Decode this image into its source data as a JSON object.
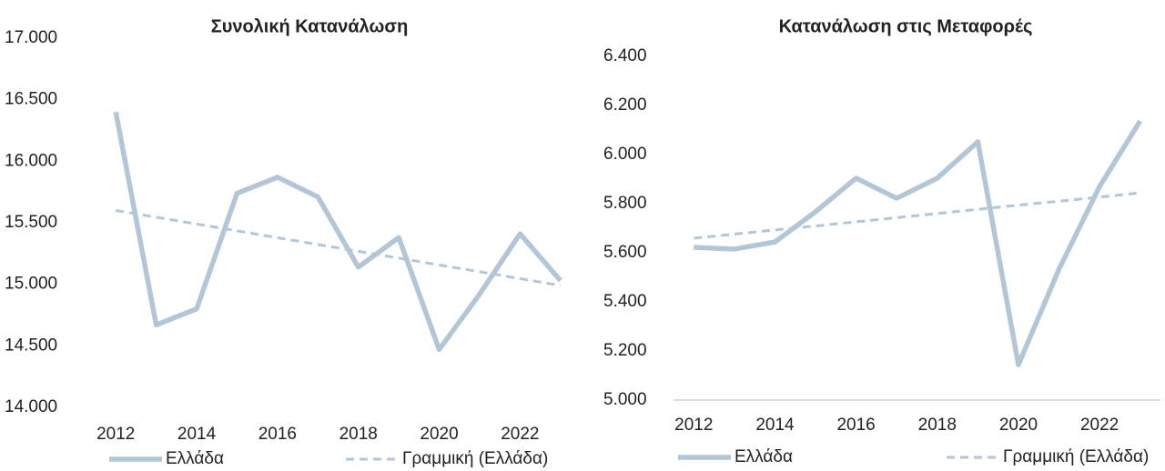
{
  "chart_data": [
    {
      "type": "line",
      "title": "Συνολική Κατανάλωση",
      "x": [
        2012,
        2013,
        2014,
        2015,
        2016,
        2017,
        2018,
        2019,
        2020,
        2021,
        2022,
        2023
      ],
      "series": [
        {
          "name": "Ελλάδα",
          "color": "#b3c6d8",
          "values": [
            16400,
            14670,
            14800,
            15740,
            15870,
            15710,
            15140,
            15380,
            14470,
            14920,
            15410,
            15030
          ]
        },
        {
          "name": "Γραμμική (Ελλάδα)",
          "color": "#b3c6d8",
          "dashed": true,
          "values": [
            15600,
            15545,
            15490,
            15434,
            15379,
            15323,
            15268,
            15213,
            15157,
            15102,
            15046,
            14990
          ]
        }
      ],
      "xlim": [
        2011.5,
        2023.5
      ],
      "xticks": [
        2012,
        2014,
        2016,
        2018,
        2020,
        2022
      ],
      "ylim": [
        14000,
        17000
      ],
      "yticks": [
        {
          "value": 14000,
          "label": "14.000"
        },
        {
          "value": 14500,
          "label": "14.500"
        },
        {
          "value": 15000,
          "label": "15.000"
        },
        {
          "value": 15500,
          "label": "15.500"
        },
        {
          "value": 16000,
          "label": "16.000"
        },
        {
          "value": 16500,
          "label": "16.500"
        },
        {
          "value": 17000,
          "label": "17.000"
        }
      ],
      "legend": "bottom"
    },
    {
      "type": "line",
      "title": "Κατανάλωση στις Μεταφορές",
      "x": [
        2012,
        2013,
        2014,
        2015,
        2016,
        2017,
        2018,
        2019,
        2020,
        2021,
        2022,
        2023
      ],
      "series": [
        {
          "name": "Ελλάδα",
          "color": "#b3c6d8",
          "values": [
            5622,
            5615,
            5644,
            5767,
            5904,
            5822,
            5904,
            6052,
            5144,
            5533,
            5870,
            6137
          ]
        },
        {
          "name": "Γραμμική (Ελλάδα)",
          "color": "#b3c6d8",
          "dashed": true,
          "values": [
            5659,
            5676,
            5693,
            5709,
            5726,
            5743,
            5760,
            5777,
            5794,
            5810,
            5827,
            5844
          ]
        }
      ],
      "xlim": [
        2011.5,
        2023.5
      ],
      "xticks": [
        2012,
        2014,
        2016,
        2018,
        2020,
        2022
      ],
      "ylim": [
        5000,
        6400
      ],
      "yticks": [
        {
          "value": 5000,
          "label": "5.000"
        },
        {
          "value": 5200,
          "label": "5.200"
        },
        {
          "value": 5400,
          "label": "5.400"
        },
        {
          "value": 5600,
          "label": "5.600"
        },
        {
          "value": 5800,
          "label": "5.800"
        },
        {
          "value": 6000,
          "label": "6.000"
        },
        {
          "value": 6200,
          "label": "6.200"
        },
        {
          "value": 6400,
          "label": "6.400"
        }
      ],
      "legend": "bottom"
    }
  ]
}
